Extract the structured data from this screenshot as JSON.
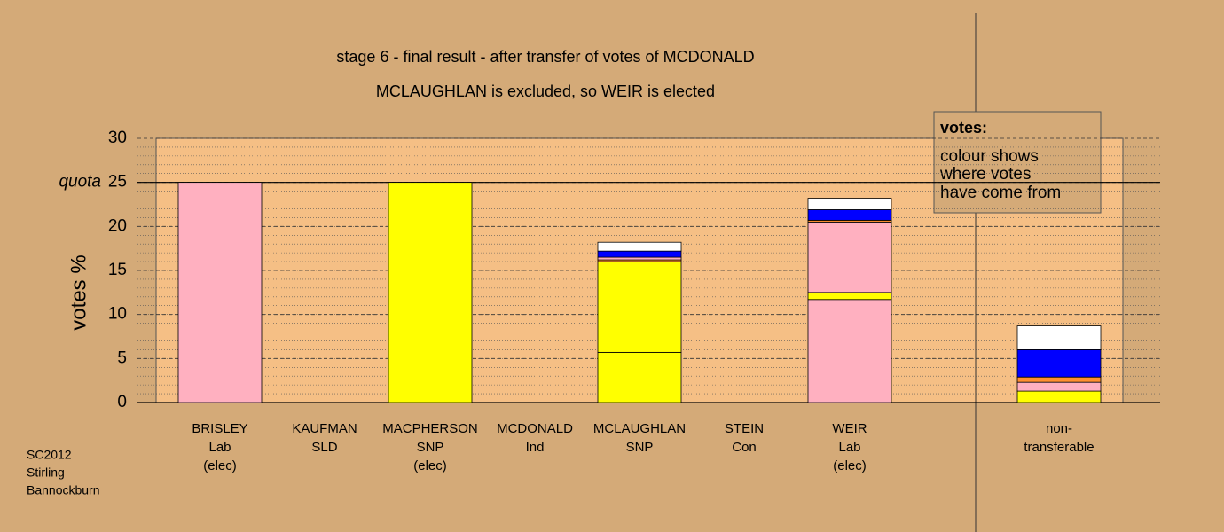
{
  "chart_data": {
    "type": "stacked-bar",
    "title": "stage 6 - final result - after transfer of votes of MCDONALD",
    "subtitle": "MCLAUGHLAN is excluded, so WEIR is elected",
    "y_label": "votes %",
    "quota": {
      "value": 25,
      "label": "quota"
    },
    "categories": [
      [
        "BRISLEY",
        "Lab",
        "(elec)"
      ],
      [
        "KAUFMAN",
        "SLD"
      ],
      [
        "MACPHERSON",
        "SNP",
        "(elec)"
      ],
      [
        "MCDONALD",
        "Ind"
      ],
      [
        "MCLAUGHLAN",
        "SNP"
      ],
      [
        "STEIN",
        "Con"
      ],
      [
        "WEIR",
        "Lab",
        "(elec)"
      ],
      [
        "non-",
        "transferable"
      ]
    ],
    "segments": [
      [
        {
          "value": 25,
          "color": "#ffb0c0"
        }
      ],
      [],
      [
        {
          "value": 25,
          "color": "#ffff00"
        }
      ],
      [],
      [
        {
          "value": 5.7,
          "color": "#ffff00"
        },
        {
          "value": 10.3,
          "color": "#ffff00"
        },
        {
          "value": 0.2,
          "color": "#ff9030"
        },
        {
          "value": 0.3,
          "color": "#ffb0c0"
        },
        {
          "value": 0.7,
          "color": "#0000ff"
        },
        {
          "value": 1.0,
          "color": "#ffffff"
        }
      ],
      [],
      [
        {
          "value": 11.7,
          "color": "#ffb0c0"
        },
        {
          "value": 0.8,
          "color": "#ffff00"
        },
        {
          "value": 8.0,
          "color": "#ffb0c0"
        },
        {
          "value": 0.2,
          "color": "#ff9030"
        },
        {
          "value": 1.2,
          "color": "#0000ff"
        },
        {
          "value": 1.3,
          "color": "#ffffff"
        }
      ],
      [
        {
          "value": 1.3,
          "color": "#ffff00"
        },
        {
          "value": 1.0,
          "color": "#ffb0c0"
        },
        {
          "value": 0.6,
          "color": "#ff9030"
        },
        {
          "value": 3.1,
          "color": "#0000ff"
        },
        {
          "value": 2.7,
          "color": "#ffffff"
        }
      ]
    ],
    "ylim": [
      0,
      30
    ],
    "yticks": [
      0,
      5,
      10,
      15,
      20,
      25,
      30
    ],
    "minor_grid": 1,
    "note": {
      "title": "votes:",
      "lines": [
        "colour shows",
        "where votes",
        "have come from"
      ]
    },
    "footer": [
      "SC2012",
      "Stirling",
      "Bannockburn"
    ]
  }
}
